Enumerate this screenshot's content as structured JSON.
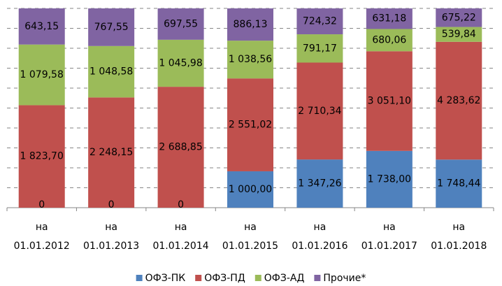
{
  "chart_data": {
    "type": "bar",
    "stacking": "percent",
    "categories": [
      "на 01.01.2012",
      "на 01.01.2013",
      "на 01.01.2014",
      "на 01.01.2015",
      "на 01.01.2016",
      "на 01.01.2017",
      "на 01.01.2018"
    ],
    "series": [
      {
        "name": "ОФЗ-ПК",
        "color": "#4f81bd",
        "values": [
          0,
          0,
          0,
          1000.0,
          1347.26,
          1738.0,
          1748.44
        ],
        "value_labels": [
          "0",
          "0",
          "0",
          "1 000,00",
          "1 347,26",
          "1 738,00",
          "1 748,44"
        ]
      },
      {
        "name": "ОФЗ-ПД",
        "color": "#c0504d",
        "values": [
          1823.7,
          2248.15,
          2688.85,
          2551.02,
          2710.34,
          3051.1,
          4283.62
        ],
        "value_labels": [
          "1 823,70",
          "2 248,15",
          "2 688,85",
          "2 551,02",
          "2 710,34",
          "3 051,10",
          "4 283,62"
        ]
      },
      {
        "name": "ОФЗ-АД",
        "color": "#9bbb59",
        "values": [
          1079.58,
          1048.58,
          1045.98,
          1038.56,
          791.17,
          680.06,
          539.84
        ],
        "value_labels": [
          "1 079,58",
          "1 048,58",
          "1 045,98",
          "1 038,56",
          "791,17",
          "680,06",
          "539,84"
        ]
      },
      {
        "name": "Прочие*",
        "color": "#8064a2",
        "values": [
          643.15,
          767.55,
          697.55,
          886.13,
          724.32,
          631.18,
          675.22
        ],
        "value_labels": [
          "643,15",
          "767,55",
          "697,55",
          "886,13",
          "724,32",
          "631,18",
          "675,22"
        ]
      }
    ],
    "ylim": [
      0,
      100
    ],
    "yticks": [
      0,
      10,
      20,
      30,
      40,
      50,
      60,
      70,
      80,
      90,
      100
    ],
    "grid": true,
    "legend": "bottom"
  }
}
